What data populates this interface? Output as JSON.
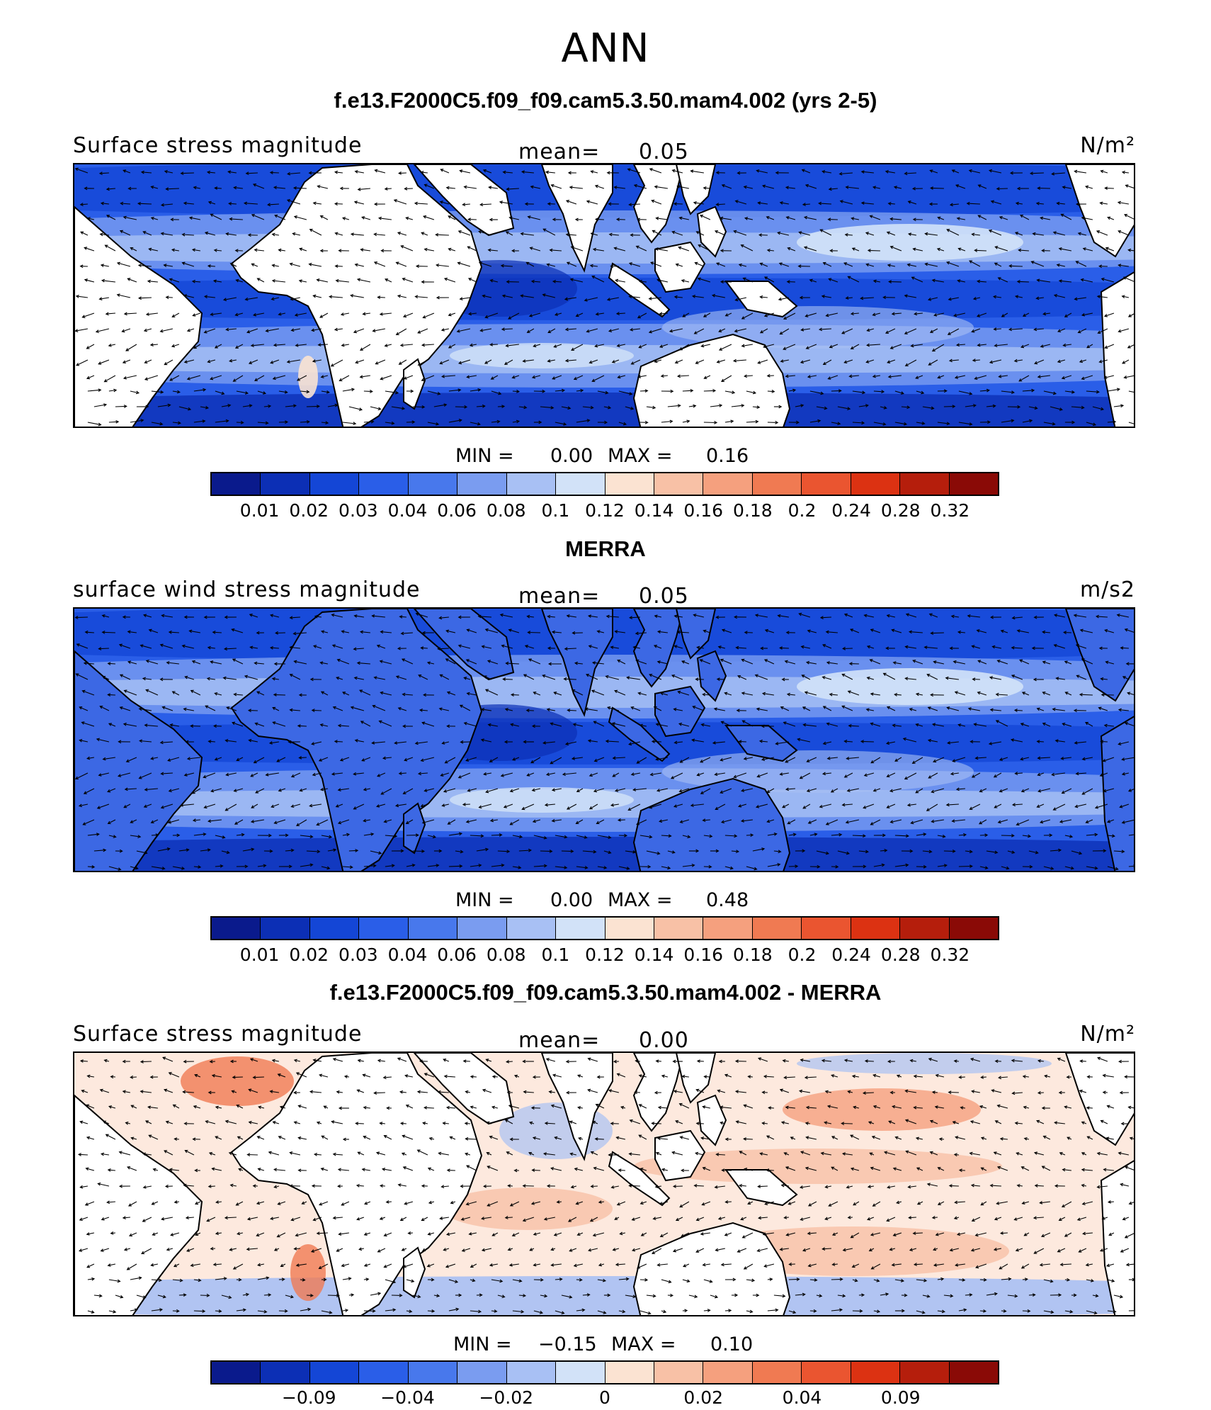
{
  "title": "ANN",
  "panels": [
    {
      "case_title": "f.e13.F2000C5.f09_f09.cam5.3.50.mam4.002 (yrs 2-5)",
      "variable": "Surface stress magnitude",
      "mean_label": "mean=",
      "mean_value": "0.05",
      "units": "N/m²",
      "min_label": "MIN =",
      "min_value": "0.00",
      "max_label": "MAX =",
      "max_value": "0.16",
      "colorbar_ticks": [
        "0.01",
        "0.02",
        "0.03",
        "0.04",
        "0.06",
        "0.08",
        "0.1",
        "0.12",
        "0.14",
        "0.16",
        "0.18",
        "0.2",
        "0.24",
        "0.28",
        "0.32"
      ],
      "style": "model"
    },
    {
      "case_title": "MERRA",
      "variable": "surface wind stress magnitude",
      "mean_label": "mean=",
      "mean_value": "0.05",
      "units": "m/s2",
      "min_label": "MIN =",
      "min_value": "0.00",
      "max_label": "MAX =",
      "max_value": "0.48",
      "colorbar_ticks": [
        "0.01",
        "0.02",
        "0.03",
        "0.04",
        "0.06",
        "0.08",
        "0.1",
        "0.12",
        "0.14",
        "0.16",
        "0.18",
        "0.2",
        "0.24",
        "0.28",
        "0.32"
      ],
      "style": "obs"
    },
    {
      "case_title": "f.e13.F2000C5.f09_f09.cam5.3.50.mam4.002 - MERRA",
      "variable": "Surface stress magnitude",
      "mean_label": "mean=",
      "mean_value": "0.00",
      "units": "N/m²",
      "min_label": "MIN =",
      "min_value": "−0.15",
      "max_label": "MAX =",
      "max_value": "0.10",
      "colorbar_ticks": [
        "−0.09",
        "",
        "−0.04",
        "",
        "−0.02",
        "",
        "0",
        "",
        "0.02",
        "",
        "0.04",
        "",
        "0.09"
      ],
      "style": "diff"
    }
  ],
  "colorbar_colors": [
    "#0a1a8c",
    "#0c2fb5",
    "#1446d6",
    "#2a5ee8",
    "#4878ec",
    "#7a9cf0",
    "#a8c0f4",
    "#d2e2f8",
    "#fbe3d2",
    "#f8c1a6",
    "#f5a07e",
    "#f07a52",
    "#ea5530",
    "#dc3212",
    "#b51e0c",
    "#8a0a06"
  ],
  "chart_data": [
    {
      "type": "heatmap",
      "title": "ANN",
      "subtitle": "f.e13.F2000C5.f09_f09.cam5.3.50.mam4.002 (yrs 2-5)",
      "variable": "Surface stress magnitude",
      "units": "N/m²",
      "mean": 0.05,
      "min": 0.0,
      "max": 0.16,
      "levels": [
        0.01,
        0.02,
        0.03,
        0.04,
        0.06,
        0.08,
        0.1,
        0.12,
        0.14,
        0.16,
        0.18,
        0.2,
        0.24,
        0.28,
        0.32
      ],
      "overlay": "vector arrows"
    },
    {
      "type": "heatmap",
      "subtitle": "MERRA",
      "variable": "surface wind stress magnitude",
      "units": "m/s2",
      "mean": 0.05,
      "min": 0.0,
      "max": 0.48,
      "levels": [
        0.01,
        0.02,
        0.03,
        0.04,
        0.06,
        0.08,
        0.1,
        0.12,
        0.14,
        0.16,
        0.18,
        0.2,
        0.24,
        0.28,
        0.32
      ],
      "overlay": "vector arrows"
    },
    {
      "type": "heatmap",
      "subtitle": "f.e13.F2000C5.f09_f09.cam5.3.50.mam4.002 - MERRA",
      "variable": "Surface stress magnitude",
      "units": "N/m²",
      "mean": 0.0,
      "min": -0.15,
      "max": 0.1,
      "levels": [
        -0.09,
        -0.04,
        -0.02,
        0,
        0.02,
        0.04,
        0.09
      ],
      "overlay": "vector arrows"
    }
  ]
}
